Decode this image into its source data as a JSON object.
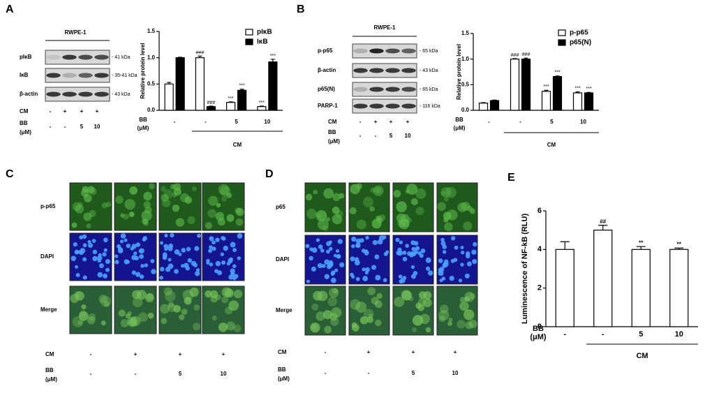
{
  "panel_labels": [
    "A",
    "B",
    "C",
    "D",
    "E"
  ],
  "blots": [
    {
      "title": "RWPE-1",
      "rows": [
        {
          "label": "pIκB",
          "size": "- 41 kDa"
        },
        {
          "label": "IκB",
          "size": "- 35-41 kDa"
        },
        {
          "label": "β-actin",
          "size": "- 43 kDa"
        }
      ],
      "conditions": [
        {
          "label": [
            "CM"
          ],
          "values": [
            "-",
            "+",
            "+",
            "+"
          ]
        },
        {
          "label": [
            "BB",
            "(μM)"
          ],
          "values": [
            "-",
            "-",
            "5",
            "10"
          ]
        }
      ]
    },
    {
      "title": "RWPE-1",
      "rows": [
        {
          "label": "p-p65",
          "size": "- 65 kDa"
        },
        {
          "label": "β-actin",
          "size": "- 43 kDa"
        },
        {
          "label": "p65(N)",
          "size": "- 65 kDa"
        },
        {
          "label": "PARP-1",
          "size": "- 116 kDa"
        }
      ],
      "conditions": [
        {
          "label": [
            "CM"
          ],
          "values": [
            "-",
            "+",
            "+",
            "+"
          ]
        },
        {
          "label": [
            "BB",
            "(μM)"
          ],
          "values": [
            "-",
            "-",
            "5",
            "10"
          ]
        }
      ]
    }
  ],
  "microscopy": [
    {
      "rows": [
        "p-p65",
        "DAPI",
        "Merge"
      ],
      "conditions": [
        {
          "label": [
            "CM"
          ],
          "values": [
            "-",
            "+",
            "+",
            "+"
          ]
        },
        {
          "label": [
            "BB",
            "(μM)"
          ],
          "values": [
            "-",
            "-",
            "5",
            "10"
          ]
        }
      ]
    },
    {
      "rows": [
        "p65",
        "DAPI",
        "Merge"
      ],
      "conditions": [
        {
          "label": [
            "CM"
          ],
          "values": [
            "-",
            "+",
            "+",
            "+"
          ]
        },
        {
          "label": [
            "BB",
            "(μM)"
          ],
          "values": [
            "-",
            "-",
            "5",
            "10"
          ]
        }
      ]
    }
  ],
  "chart_data": [
    {
      "type": "bar",
      "y_label": "Relative protein level",
      "x_label": [
        "BB",
        "(μM)"
      ],
      "categories": [
        "-",
        "-",
        "5",
        "10"
      ],
      "group_label": "CM",
      "series": [
        {
          "name": "pIκB",
          "color": "#ffffff",
          "values": [
            0.5,
            1.0,
            0.15,
            0.07
          ],
          "errors": [
            0.03,
            0.03,
            0.01,
            0.01
          ],
          "annotations": [
            null,
            "###",
            "***",
            "***"
          ]
        },
        {
          "name": "IκB",
          "color": "#000000",
          "values": [
            1.0,
            0.07,
            0.38,
            0.92
          ],
          "errors": [
            0.01,
            0.01,
            0.02,
            0.05
          ],
          "annotations": [
            null,
            "###",
            "***",
            "***"
          ]
        }
      ],
      "ylim": [
        0,
        1.5
      ],
      "yticks": [
        {
          "value": 0,
          "label": "0.0"
        },
        0.5,
        {
          "value": 1,
          "label": "1.0"
        },
        1.5
      ],
      "legend": "upper right"
    },
    {
      "type": "bar",
      "y_label": "Relative protein level",
      "x_label": [
        "BB",
        "(μM)"
      ],
      "categories": [
        "-",
        "-",
        "5",
        "10"
      ],
      "group_label": "CM",
      "series": [
        {
          "name": "p-p65",
          "color": "#ffffff",
          "values": [
            0.14,
            1.0,
            0.37,
            0.34
          ],
          "errors": [
            0.01,
            0.01,
            0.02,
            0.02
          ],
          "annotations": [
            null,
            "###",
            "***",
            "***"
          ]
        },
        {
          "name": "p65(N)",
          "color": "#000000",
          "values": [
            0.19,
            1.0,
            0.66,
            0.34
          ],
          "errors": [
            0.01,
            0.02,
            0.01,
            0.01
          ],
          "annotations": [
            null,
            "###",
            "***",
            "***"
          ]
        }
      ],
      "ylim": [
        0,
        1.5
      ],
      "yticks": [
        {
          "value": 0,
          "label": "0.0"
        },
        0.5,
        {
          "value": 1,
          "label": "1.0"
        },
        1.5
      ],
      "legend": "upper right"
    },
    {
      "type": "bar",
      "y_label": "Luminescence of NF-kB (RLU)",
      "x_label": [
        "BB",
        "(μM)"
      ],
      "categories": [
        "-",
        "-",
        "5",
        "10"
      ],
      "group_label": "CM",
      "series": [
        {
          "color": "#ffffff",
          "values": [
            4.0,
            5.0,
            4.0,
            4.0
          ],
          "errors": [
            0.4,
            0.25,
            0.15,
            0.07
          ],
          "annotations": [
            null,
            "##",
            "**",
            "**"
          ]
        }
      ],
      "ylim": [
        0,
        6
      ],
      "yticks": [
        0,
        2,
        4,
        6
      ]
    }
  ]
}
